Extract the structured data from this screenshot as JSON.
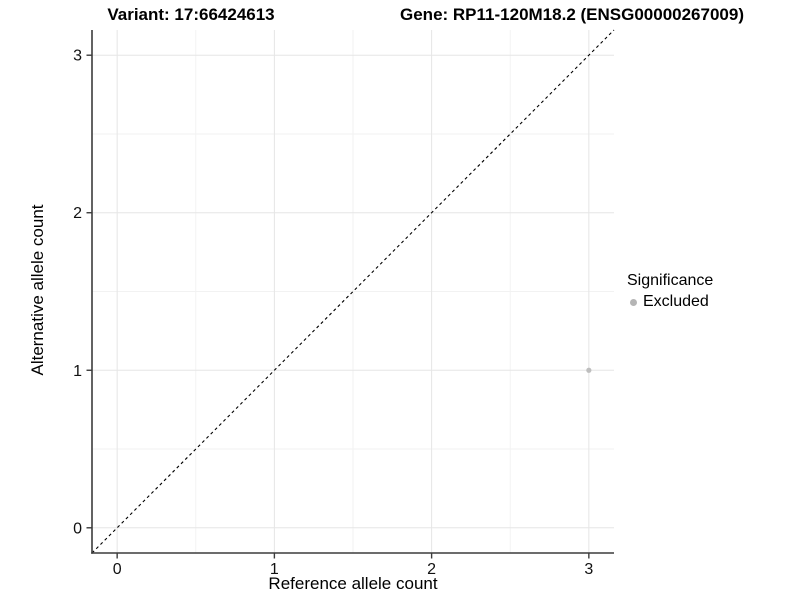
{
  "chart_data": {
    "type": "scatter",
    "titles": {
      "variant": "Variant: 17:66424613",
      "gene": "Gene: RP11-120M18.2 (ENSG00000267009)"
    },
    "xlabel": "Reference allele count",
    "ylabel": "Alternative allele count",
    "x_ticks": [
      0,
      1,
      2,
      3
    ],
    "y_ticks": [
      0,
      1,
      2,
      3
    ],
    "minor_gridlines": [
      0.5,
      1.5,
      2.5
    ],
    "xlim": [
      -0.16,
      3.16
    ],
    "ylim": [
      -0.16,
      3.16
    ],
    "grid": true,
    "points": [
      {
        "x": 3,
        "y": 1,
        "significance": "Excluded",
        "color": "#bebebe"
      }
    ],
    "identity_line": {
      "slope": 1,
      "intercept": 0,
      "linetype": "dashed",
      "color": "#000000"
    },
    "legend": {
      "title": "Significance",
      "position": "right",
      "items": [
        {
          "label": "Excluded",
          "color": "#b5b5b5",
          "marker": "dot-icon"
        }
      ]
    },
    "colors": {
      "background": "#ffffff",
      "grid_major": "#e6e6e6",
      "grid_minor": "#f2f2f2",
      "axis_line": "#3c3c3c",
      "text": "#000000"
    }
  }
}
